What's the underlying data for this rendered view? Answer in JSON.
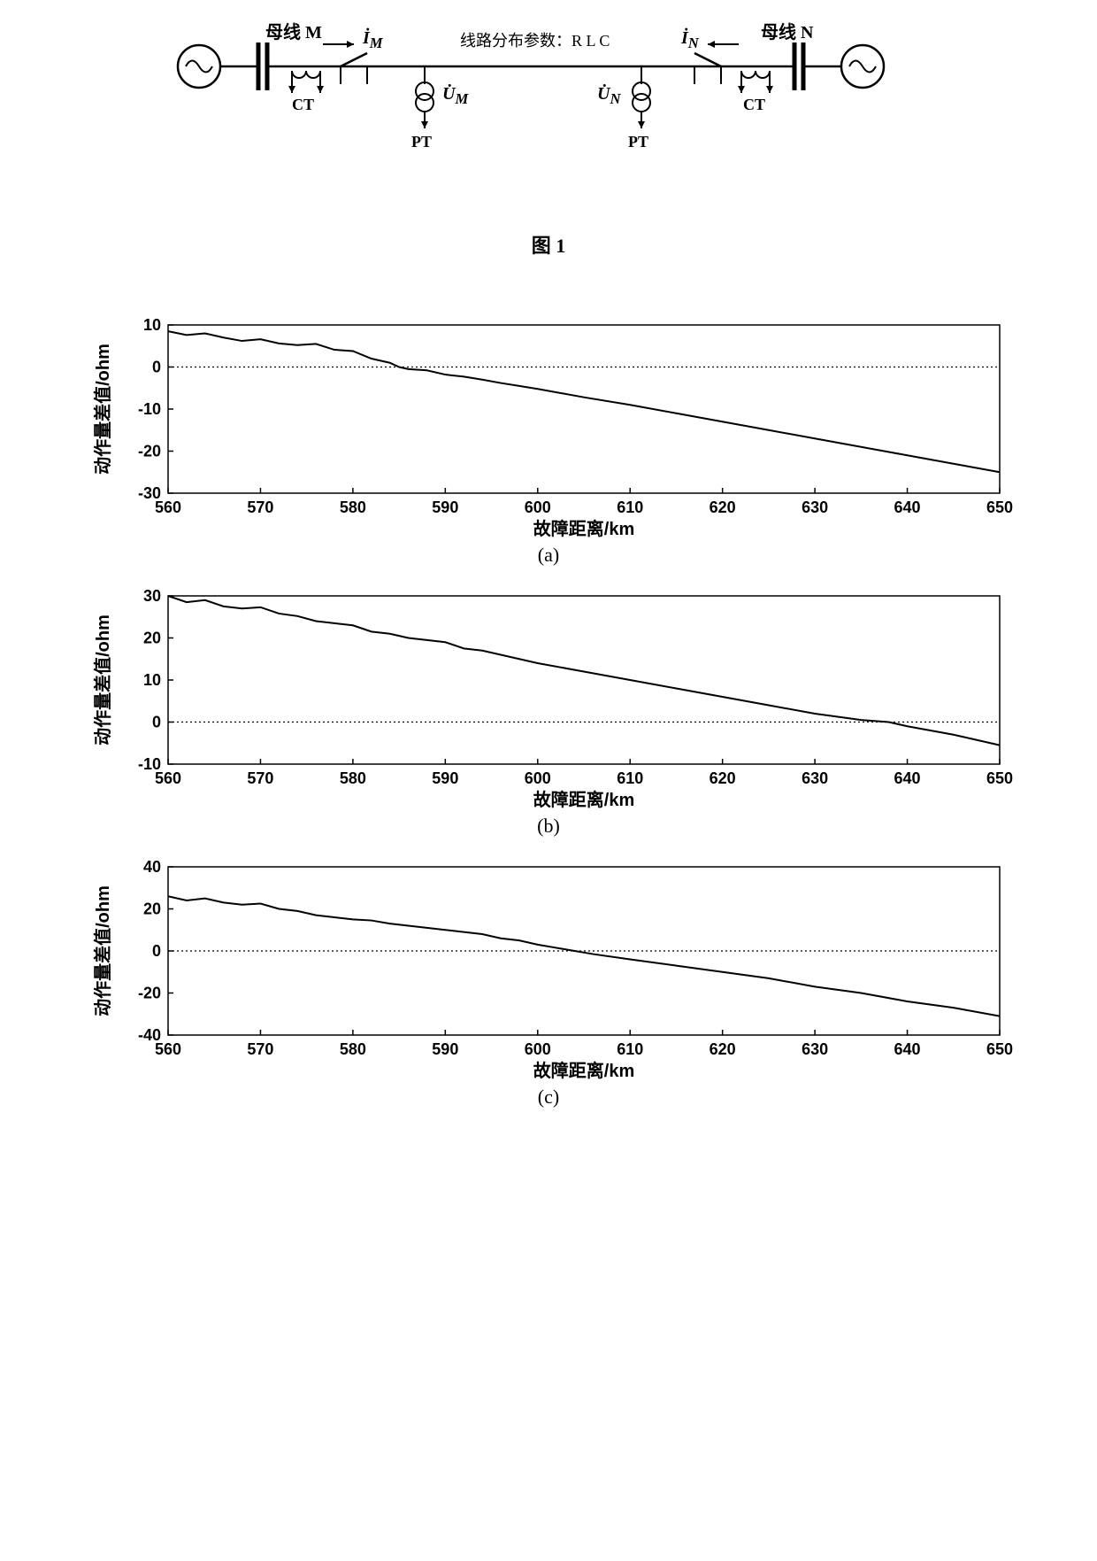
{
  "diagram": {
    "label_bus_m": "母线 M",
    "label_bus_n": "母线 N",
    "label_line_params": "线路分布参数：R L C",
    "label_ct_left": "CT",
    "label_ct_right": "CT",
    "label_pt_left": "PT",
    "label_pt_right": "PT",
    "label_im": "İ",
    "label_im_sub": "M",
    "label_in": "İ",
    "label_in_sub": "N",
    "label_um": "U̇",
    "label_um_sub": "M",
    "label_un": "U̇",
    "label_un_sub": "N",
    "caption": "图 1",
    "stroke_color": "#000000",
    "bg_color": "#ffffff"
  },
  "charts_common": {
    "xlabel": "故障距离/km",
    "ylabel": "动作量差值/ohm",
    "xlim": [
      560,
      650
    ],
    "xticks": [
      560,
      570,
      580,
      590,
      600,
      610,
      620,
      630,
      640,
      650
    ],
    "line_color": "#000000",
    "zero_line_color": "#000000",
    "bg_color": "#ffffff",
    "axis_color": "#000000",
    "font_size_axis": 18,
    "font_size_label": 20,
    "line_width": 2
  },
  "chart_a": {
    "caption": "(a)",
    "ylim": [
      -30,
      10
    ],
    "yticks": [
      -30,
      -20,
      -10,
      0,
      10
    ],
    "zero_y": 0,
    "data": [
      {
        "x": 560,
        "y": 8.5
      },
      {
        "x": 562,
        "y": 7.6
      },
      {
        "x": 564,
        "y": 8.0
      },
      {
        "x": 566,
        "y": 7.0
      },
      {
        "x": 568,
        "y": 6.2
      },
      {
        "x": 570,
        "y": 6.6
      },
      {
        "x": 572,
        "y": 5.6
      },
      {
        "x": 574,
        "y": 5.2
      },
      {
        "x": 576,
        "y": 5.5
      },
      {
        "x": 578,
        "y": 4.1
      },
      {
        "x": 580,
        "y": 3.8
      },
      {
        "x": 582,
        "y": 2.0
      },
      {
        "x": 584,
        "y": 1.0
      },
      {
        "x": 585,
        "y": 0.0
      },
      {
        "x": 586,
        "y": -0.5
      },
      {
        "x": 588,
        "y": -0.8
      },
      {
        "x": 590,
        "y": -1.8
      },
      {
        "x": 592,
        "y": -2.3
      },
      {
        "x": 594,
        "y": -3.0
      },
      {
        "x": 596,
        "y": -3.8
      },
      {
        "x": 598,
        "y": -4.5
      },
      {
        "x": 600,
        "y": -5.2
      },
      {
        "x": 605,
        "y": -7.2
      },
      {
        "x": 610,
        "y": -9.0
      },
      {
        "x": 615,
        "y": -11.0
      },
      {
        "x": 620,
        "y": -13.0
      },
      {
        "x": 625,
        "y": -15.0
      },
      {
        "x": 630,
        "y": -17.0
      },
      {
        "x": 635,
        "y": -19.0
      },
      {
        "x": 640,
        "y": -21.0
      },
      {
        "x": 645,
        "y": -23.0
      },
      {
        "x": 650,
        "y": -25.0
      }
    ]
  },
  "chart_b": {
    "caption": "(b)",
    "ylim": [
      -10,
      30
    ],
    "yticks": [
      -10,
      0,
      10,
      20,
      30
    ],
    "zero_y": 0,
    "data": [
      {
        "x": 560,
        "y": 30
      },
      {
        "x": 562,
        "y": 28.5
      },
      {
        "x": 564,
        "y": 29.0
      },
      {
        "x": 566,
        "y": 27.5
      },
      {
        "x": 568,
        "y": 27.0
      },
      {
        "x": 570,
        "y": 27.3
      },
      {
        "x": 572,
        "y": 25.8
      },
      {
        "x": 574,
        "y": 25.2
      },
      {
        "x": 576,
        "y": 24.0
      },
      {
        "x": 578,
        "y": 23.5
      },
      {
        "x": 580,
        "y": 23.0
      },
      {
        "x": 582,
        "y": 21.5
      },
      {
        "x": 584,
        "y": 21.0
      },
      {
        "x": 586,
        "y": 20.0
      },
      {
        "x": 588,
        "y": 19.5
      },
      {
        "x": 590,
        "y": 19.0
      },
      {
        "x": 592,
        "y": 17.5
      },
      {
        "x": 594,
        "y": 17.0
      },
      {
        "x": 596,
        "y": 16.0
      },
      {
        "x": 598,
        "y": 15.0
      },
      {
        "x": 600,
        "y": 14.0
      },
      {
        "x": 605,
        "y": 12.0
      },
      {
        "x": 610,
        "y": 10.0
      },
      {
        "x": 615,
        "y": 8.0
      },
      {
        "x": 620,
        "y": 6.0
      },
      {
        "x": 625,
        "y": 4.0
      },
      {
        "x": 630,
        "y": 2.0
      },
      {
        "x": 635,
        "y": 0.5
      },
      {
        "x": 638,
        "y": 0.0
      },
      {
        "x": 640,
        "y": -1.0
      },
      {
        "x": 645,
        "y": -3.0
      },
      {
        "x": 650,
        "y": -5.5
      }
    ]
  },
  "chart_c": {
    "caption": "(c)",
    "ylim": [
      -40,
      40
    ],
    "yticks": [
      -40,
      -20,
      0,
      20,
      40
    ],
    "zero_y": 0,
    "data": [
      {
        "x": 560,
        "y": 26
      },
      {
        "x": 562,
        "y": 24
      },
      {
        "x": 564,
        "y": 25
      },
      {
        "x": 566,
        "y": 23
      },
      {
        "x": 568,
        "y": 22
      },
      {
        "x": 570,
        "y": 22.5
      },
      {
        "x": 572,
        "y": 20
      },
      {
        "x": 574,
        "y": 19
      },
      {
        "x": 576,
        "y": 17
      },
      {
        "x": 578,
        "y": 16
      },
      {
        "x": 580,
        "y": 15
      },
      {
        "x": 582,
        "y": 14.5
      },
      {
        "x": 584,
        "y": 13
      },
      {
        "x": 586,
        "y": 12
      },
      {
        "x": 588,
        "y": 11
      },
      {
        "x": 590,
        "y": 10
      },
      {
        "x": 592,
        "y": 9
      },
      {
        "x": 594,
        "y": 8
      },
      {
        "x": 596,
        "y": 6
      },
      {
        "x": 598,
        "y": 5
      },
      {
        "x": 600,
        "y": 3
      },
      {
        "x": 602,
        "y": 1.5
      },
      {
        "x": 604,
        "y": 0
      },
      {
        "x": 606,
        "y": -1.5
      },
      {
        "x": 610,
        "y": -4
      },
      {
        "x": 615,
        "y": -7
      },
      {
        "x": 620,
        "y": -10
      },
      {
        "x": 625,
        "y": -13
      },
      {
        "x": 630,
        "y": -17
      },
      {
        "x": 635,
        "y": -20
      },
      {
        "x": 640,
        "y": -24
      },
      {
        "x": 645,
        "y": -27
      },
      {
        "x": 650,
        "y": -31
      }
    ]
  }
}
